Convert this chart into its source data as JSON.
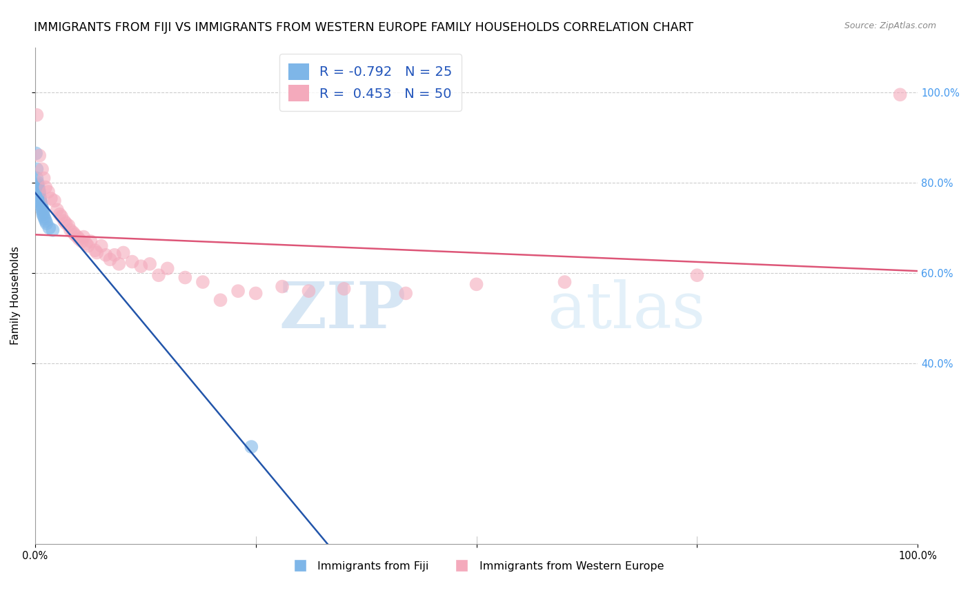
{
  "title": "IMMIGRANTS FROM FIJI VS IMMIGRANTS FROM WESTERN EUROPE FAMILY HOUSEHOLDS CORRELATION CHART",
  "source_text": "Source: ZipAtlas.com",
  "ylabel": "Family Households",
  "legend_label_blue": "Immigrants from Fiji",
  "legend_label_pink": "Immigrants from Western Europe",
  "R_blue": -0.792,
  "N_blue": 25,
  "R_pink": 0.453,
  "N_pink": 50,
  "blue_color": "#7EB6E8",
  "pink_color": "#F4AABC",
  "blue_line_color": "#2255AA",
  "pink_line_color": "#DD5577",
  "watermark_zip": "ZIP",
  "watermark_atlas": "atlas",
  "grid_color": "#cccccc",
  "bg_color": "#ffffff",
  "title_fontsize": 12.5,
  "axis_fontsize": 11,
  "tick_fontsize": 10.5,
  "right_tick_color": "#4499EE",
  "fiji_x": [
    0.001,
    0.002,
    0.002,
    0.003,
    0.003,
    0.004,
    0.004,
    0.005,
    0.005,
    0.005,
    0.006,
    0.006,
    0.007,
    0.007,
    0.008,
    0.008,
    0.009,
    0.009,
    0.01,
    0.011,
    0.012,
    0.013,
    0.016,
    0.02,
    0.245
  ],
  "fiji_y": [
    0.865,
    0.83,
    0.81,
    0.8,
    0.795,
    0.79,
    0.785,
    0.78,
    0.775,
    0.77,
    0.765,
    0.76,
    0.755,
    0.75,
    0.745,
    0.74,
    0.735,
    0.73,
    0.725,
    0.72,
    0.715,
    0.71,
    0.7,
    0.695,
    0.215
  ],
  "we_x": [
    0.002,
    0.005,
    0.008,
    0.01,
    0.012,
    0.015,
    0.018,
    0.022,
    0.025,
    0.028,
    0.03,
    0.033,
    0.035,
    0.038,
    0.04,
    0.043,
    0.045,
    0.048,
    0.05,
    0.053,
    0.055,
    0.058,
    0.06,
    0.063,
    0.068,
    0.07,
    0.075,
    0.08,
    0.085,
    0.09,
    0.095,
    0.1,
    0.11,
    0.12,
    0.13,
    0.14,
    0.15,
    0.17,
    0.19,
    0.21,
    0.23,
    0.25,
    0.28,
    0.31,
    0.35,
    0.42,
    0.5,
    0.6,
    0.75,
    0.98
  ],
  "we_y": [
    0.95,
    0.86,
    0.83,
    0.81,
    0.79,
    0.78,
    0.765,
    0.76,
    0.74,
    0.73,
    0.725,
    0.715,
    0.71,
    0.705,
    0.695,
    0.69,
    0.685,
    0.68,
    0.675,
    0.67,
    0.68,
    0.665,
    0.66,
    0.67,
    0.65,
    0.645,
    0.66,
    0.64,
    0.63,
    0.64,
    0.62,
    0.645,
    0.625,
    0.615,
    0.62,
    0.595,
    0.61,
    0.59,
    0.58,
    0.54,
    0.56,
    0.555,
    0.57,
    0.56,
    0.565,
    0.555,
    0.575,
    0.58,
    0.595,
    0.995
  ],
  "xlim": [
    0.0,
    1.0
  ],
  "ylim": [
    0.0,
    1.1
  ],
  "yticks": [
    0.4,
    0.6,
    0.8,
    1.0
  ],
  "xticks": [
    0.0,
    0.25,
    0.5,
    0.75,
    1.0
  ]
}
